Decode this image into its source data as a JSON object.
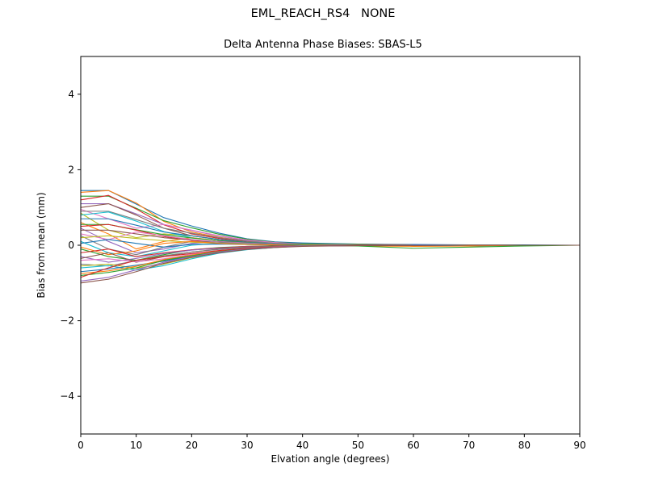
{
  "window": {
    "title": "EML_REACH_RS4   NONE"
  },
  "chart_data": {
    "type": "line",
    "title": "EML_REACH_RS4   NONE",
    "subtitle": "Delta Antenna Phase Biases: SBAS-L5",
    "xlabel": "Elvation angle (degrees)",
    "ylabel": "Bias from mean (mm)",
    "xlim": [
      0,
      90
    ],
    "ylim": [
      -5,
      5
    ],
    "xticks": [
      0,
      10,
      20,
      30,
      40,
      50,
      60,
      70,
      80,
      90
    ],
    "yticks": [
      -4,
      -2,
      0,
      2,
      4
    ],
    "grid": false,
    "legend": "none",
    "frame_color": "#000000",
    "background": "#ffffff",
    "x": [
      0,
      5,
      10,
      15,
      20,
      25,
      30,
      35,
      40,
      50,
      60,
      70,
      80,
      90
    ],
    "colors": [
      "#1f77b4",
      "#ff7f0e",
      "#2ca02c",
      "#d62728",
      "#9467bd",
      "#8c564b",
      "#e377c2",
      "#7f7f7f",
      "#bcbd22",
      "#17becf"
    ],
    "series": [
      [
        1.45,
        1.45,
        1.09,
        0.73,
        0.51,
        0.32,
        0.17,
        0.09,
        0.06,
        0.03,
        0.02,
        0.01,
        0.01,
        0
      ],
      [
        1.4,
        1.45,
        1.12,
        0.63,
        0.35,
        0.21,
        0.11,
        0.06,
        0.03,
        0.01,
        0.01,
        0,
        0,
        0
      ],
      [
        1.3,
        1.3,
        0.98,
        0.65,
        0.46,
        0.29,
        0.16,
        0.08,
        0.04,
        0.03,
        0.01,
        0.01,
        0,
        0
      ],
      [
        1.2,
        1.32,
        0.96,
        0.54,
        0.3,
        0.18,
        0.1,
        0.05,
        0.02,
        0.01,
        0,
        0,
        0,
        0
      ],
      [
        1.1,
        1.1,
        0.83,
        0.55,
        0.39,
        0.24,
        0.13,
        0.07,
        0.03,
        0.02,
        0.01,
        0.01,
        0,
        0
      ],
      [
        1.0,
        1.1,
        0.8,
        0.45,
        0.25,
        0.15,
        0.08,
        0.04,
        0.02,
        0.01,
        0,
        0,
        0,
        0
      ],
      [
        0.95,
        0.7,
        0.45,
        0.55,
        0.4,
        0.25,
        0.14,
        0.07,
        0.03,
        0.02,
        0.01,
        0,
        0,
        0
      ],
      [
        0.9,
        0.9,
        0.68,
        0.45,
        0.32,
        0.2,
        0.11,
        0.05,
        0.03,
        0.02,
        0.01,
        0.01,
        0,
        0
      ],
      [
        0.85,
        0.4,
        0.2,
        0.3,
        0.25,
        0.15,
        0.08,
        0.04,
        0.02,
        0.01,
        0,
        0,
        0,
        0
      ],
      [
        0.8,
        0.88,
        0.64,
        0.36,
        0.2,
        0.12,
        0.06,
        0.03,
        0.02,
        0.01,
        0,
        0,
        0,
        0
      ],
      [
        0.7,
        0.7,
        0.53,
        0.35,
        0.25,
        0.15,
        0.08,
        0.04,
        0.02,
        0.01,
        0.01,
        0,
        0,
        0
      ],
      [
        0.6,
        0.3,
        -0.1,
        0.1,
        0.2,
        0.12,
        0.06,
        0.03,
        0.01,
        0.01,
        0,
        0,
        0,
        0
      ],
      [
        0.55,
        0.55,
        0.41,
        0.28,
        0.19,
        0.12,
        0.07,
        0.03,
        0.02,
        0.01,
        0,
        0,
        0,
        0
      ],
      [
        0.5,
        0.55,
        0.4,
        0.23,
        0.13,
        0.08,
        0.04,
        0.02,
        0.01,
        0,
        0,
        0,
        0,
        0
      ],
      [
        0.45,
        0.1,
        -0.2,
        -0.1,
        0.05,
        0.1,
        0.06,
        0.03,
        0.01,
        0,
        0,
        0,
        0,
        0
      ],
      [
        0.4,
        0.4,
        0.3,
        0.2,
        0.14,
        0.09,
        0.05,
        0.02,
        0.01,
        0.01,
        0,
        0,
        0,
        0
      ],
      [
        0.3,
        0.15,
        0.35,
        0.25,
        0.15,
        0.09,
        0.05,
        0.02,
        0.01,
        0,
        0,
        0,
        0,
        0
      ],
      [
        0.25,
        -0.1,
        -0.25,
        -0.05,
        0.1,
        0.08,
        0.04,
        0.02,
        0.01,
        0,
        0,
        0,
        0,
        0
      ],
      [
        0.2,
        0.25,
        0.18,
        0.12,
        0.08,
        0.05,
        0.03,
        0.01,
        0.01,
        0,
        0,
        0,
        0,
        0
      ],
      [
        0.1,
        -0.2,
        -0.3,
        -0.15,
        0.0,
        0.05,
        0.03,
        0.01,
        0,
        0,
        0,
        0,
        0,
        0
      ],
      [
        0.05,
        0.15,
        0.05,
        -0.05,
        0.02,
        0.03,
        0.02,
        0.01,
        0,
        0,
        -0.02,
        -0.02,
        0,
        0
      ],
      [
        -0.05,
        -0.25,
        -0.15,
        0.05,
        0.1,
        0.05,
        0.02,
        0.01,
        0,
        -0.02,
        -0.03,
        -0.02,
        0,
        0
      ],
      [
        -0.1,
        -0.3,
        -0.4,
        -0.25,
        -0.12,
        -0.06,
        -0.03,
        -0.01,
        0,
        -0.02,
        -0.08,
        -0.05,
        -0.02,
        0
      ],
      [
        -0.2,
        -0.1,
        -0.3,
        -0.2,
        -0.12,
        -0.07,
        -0.03,
        -0.02,
        -0.01,
        0,
        0,
        0,
        0,
        0
      ],
      [
        -0.3,
        -0.45,
        -0.35,
        -0.22,
        -0.13,
        -0.08,
        -0.04,
        -0.02,
        -0.01,
        0,
        0,
        0,
        0,
        0
      ],
      [
        -0.35,
        -0.2,
        -0.45,
        -0.3,
        -0.18,
        -0.1,
        -0.05,
        -0.02,
        -0.01,
        -0.01,
        0,
        0,
        0,
        0
      ],
      [
        -0.4,
        -0.36,
        -0.44,
        -0.36,
        -0.24,
        -0.14,
        -0.08,
        -0.04,
        -0.02,
        -0.01,
        0,
        0,
        0,
        0
      ],
      [
        -0.5,
        -0.55,
        -0.41,
        -0.28,
        -0.18,
        -0.11,
        -0.06,
        -0.03,
        -0.01,
        -0.01,
        0,
        0,
        0,
        0
      ],
      [
        -0.55,
        -0.5,
        -0.61,
        -0.5,
        -0.33,
        -0.19,
        -0.11,
        -0.06,
        -0.02,
        -0.01,
        -0.01,
        0,
        0,
        0
      ],
      [
        -0.6,
        -0.54,
        -0.66,
        -0.54,
        -0.36,
        -0.21,
        -0.12,
        -0.06,
        -0.02,
        -0.01,
        -0.01,
        0,
        0,
        0
      ],
      [
        -0.7,
        -0.63,
        -0.53,
        -0.42,
        -0.29,
        -0.18,
        -0.1,
        -0.05,
        -0.02,
        -0.01,
        -0.01,
        0,
        0,
        0
      ],
      [
        -0.75,
        -0.68,
        -0.56,
        -0.38,
        -0.26,
        -0.16,
        -0.09,
        -0.04,
        -0.02,
        -0.01,
        0,
        0,
        0,
        0
      ],
      [
        -0.8,
        -0.72,
        -0.6,
        -0.4,
        -0.28,
        -0.17,
        -0.09,
        -0.05,
        -0.02,
        -0.01,
        0,
        0,
        0,
        0
      ],
      [
        -0.85,
        -0.6,
        -0.4,
        -0.3,
        -0.22,
        -0.14,
        -0.08,
        -0.04,
        -0.02,
        -0.01,
        0,
        0,
        0,
        0
      ],
      [
        -0.95,
        -0.85,
        -0.65,
        -0.45,
        -0.3,
        -0.18,
        -0.1,
        -0.05,
        -0.02,
        -0.01,
        0,
        0,
        0,
        0
      ],
      [
        -1.0,
        -0.9,
        -0.7,
        -0.48,
        -0.32,
        -0.2,
        -0.11,
        -0.06,
        -0.03,
        -0.01,
        -0.01,
        0,
        0,
        0
      ]
    ]
  }
}
